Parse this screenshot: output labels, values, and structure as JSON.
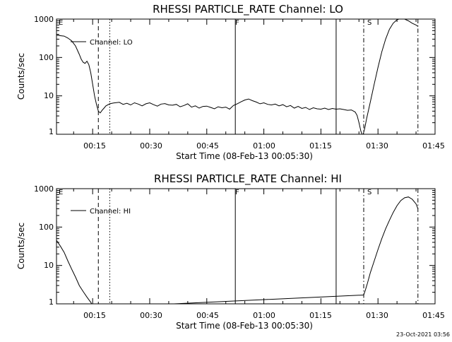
{
  "footer": {
    "timestamp": "23-Oct-2021 03:56"
  },
  "chart_data": [
    {
      "type": "line",
      "title": "RHESSI PARTICLE_RATE Channel: LO",
      "xlabel": "Start Time (08-Feb-13 00:05:30)",
      "ylabel": "Counts/sec",
      "xscale": "time",
      "yscale": "log",
      "xlim": [
        "00:05:30",
        "01:45:00"
      ],
      "ylim": [
        1,
        1000
      ],
      "xticks": [
        "00:15",
        "00:30",
        "00:45",
        "01:00",
        "01:15",
        "01:30",
        "01:45"
      ],
      "yticks": [
        "1",
        "10",
        "100",
        "1000"
      ],
      "legend": {
        "position": "top-left",
        "entries": [
          "Channel: LO"
        ]
      },
      "markers": [
        {
          "label": "E",
          "time": "00:05:30",
          "style": "solid"
        },
        {
          "label": "",
          "time": "00:16:30",
          "style": "dashed"
        },
        {
          "label": "",
          "time": "00:19:30",
          "style": "dotted"
        },
        {
          "label": "F",
          "time": "00:52:30",
          "style": "solid"
        },
        {
          "label": "",
          "time": "01:19:00",
          "style": "solid"
        },
        {
          "label": "S",
          "time": "01:26:15",
          "style": "dashdot"
        },
        {
          "label": "",
          "time": "01:40:30",
          "style": "dashdot"
        }
      ],
      "series": [
        {
          "name": "Channel: LO",
          "x": [
            "00:05:30",
            "00:06:30",
            "00:07:30",
            "00:08:30",
            "00:09:30",
            "00:10:30",
            "00:11:30",
            "00:12:00",
            "00:12:30",
            "00:13:00",
            "00:13:30",
            "00:14:00",
            "00:14:30",
            "00:15:00",
            "00:15:30",
            "00:16:00",
            "00:16:30",
            "00:17:00",
            "00:17:30",
            "00:18:00",
            "00:18:30",
            "00:19:30",
            "00:20:30",
            "00:22:00",
            "00:23:00",
            "00:24:00",
            "00:25:00",
            "00:26:00",
            "00:27:00",
            "00:28:00",
            "00:29:00",
            "00:30:00",
            "00:31:00",
            "00:32:00",
            "00:33:00",
            "00:34:00",
            "00:35:00",
            "00:36:00",
            "00:37:00",
            "00:38:00",
            "00:39:00",
            "00:40:00",
            "00:41:00",
            "00:42:00",
            "00:43:00",
            "00:44:00",
            "00:45:00",
            "00:46:00",
            "00:47:00",
            "00:48:00",
            "00:49:00",
            "00:50:00",
            "00:51:00",
            "00:52:00",
            "00:53:00",
            "00:54:00",
            "00:55:00",
            "00:56:00",
            "00:57:00",
            "00:58:00",
            "00:59:00",
            "01:00:00",
            "01:01:00",
            "01:02:00",
            "01:03:00",
            "01:04:00",
            "01:05:00",
            "01:06:00",
            "01:07:00",
            "01:08:00",
            "01:09:00",
            "01:10:00",
            "01:11:00",
            "01:12:00",
            "01:13:00",
            "01:14:00",
            "01:15:00",
            "01:16:00",
            "01:17:00",
            "01:18:00",
            "01:19:00",
            "01:20:00",
            "01:21:00",
            "01:22:00",
            "01:23:00",
            "01:24:00",
            "01:24:30",
            "01:25:00",
            "01:25:30",
            "01:26:00",
            "01:26:30",
            "01:27:00",
            "01:28:00",
            "01:29:00",
            "01:30:00",
            "01:31:00",
            "01:32:00",
            "01:33:00",
            "01:34:00",
            "01:35:00",
            "01:36:00",
            "01:37:00",
            "01:38:00",
            "01:39:00",
            "01:40:00",
            "01:40:30"
          ],
          "y": [
            380,
            370,
            360,
            320,
            270,
            200,
            120,
            90,
            75,
            70,
            80,
            65,
            40,
            20,
            10,
            6,
            4,
            3.6,
            4.2,
            4.8,
            5.5,
            6.2,
            6.5,
            6.8,
            6.0,
            6.4,
            5.8,
            6.6,
            6.1,
            5.5,
            6.2,
            6.6,
            5.9,
            5.4,
            6.1,
            6.3,
            5.8,
            5.7,
            6.0,
            5.2,
            5.6,
            6.2,
            5.1,
            5.5,
            4.8,
            5.3,
            5.4,
            5.0,
            4.6,
            5.2,
            4.9,
            5.1,
            4.5,
            5.6,
            6.2,
            7.0,
            7.8,
            8.3,
            7.5,
            6.9,
            6.2,
            6.6,
            6.0,
            5.8,
            6.1,
            5.5,
            5.9,
            5.2,
            5.6,
            4.8,
            5.3,
            4.7,
            5.0,
            4.4,
            4.9,
            4.6,
            4.5,
            4.8,
            4.4,
            4.7,
            4.5,
            4.6,
            4.4,
            4.2,
            4.3,
            3.8,
            3.1,
            2.0,
            1.2,
            0.9,
            1.4,
            2.5,
            7,
            20,
            55,
            140,
            300,
            540,
            780,
            960,
            1040,
            1000,
            900,
            780,
            700,
            640
          ]
        }
      ]
    },
    {
      "type": "line",
      "title": "RHESSI PARTICLE_RATE Channel: HI",
      "xlabel": "Start Time (08-Feb-13 00:05:30)",
      "ylabel": "Counts/sec",
      "xscale": "time",
      "yscale": "log",
      "xlim": [
        "00:05:30",
        "01:45:00"
      ],
      "ylim": [
        1,
        1000
      ],
      "xticks": [
        "00:15",
        "00:30",
        "00:45",
        "01:00",
        "01:15",
        "01:30",
        "01:45"
      ],
      "yticks": [
        "1",
        "10",
        "100",
        "1000"
      ],
      "legend": {
        "position": "top-left",
        "entries": [
          "Channel: HI"
        ]
      },
      "markers": [
        {
          "label": "E",
          "time": "00:05:30",
          "style": "solid"
        },
        {
          "label": "",
          "time": "00:16:30",
          "style": "dashed"
        },
        {
          "label": "",
          "time": "00:19:30",
          "style": "dotted"
        },
        {
          "label": "F",
          "time": "00:52:30",
          "style": "solid"
        },
        {
          "label": "",
          "time": "01:19:00",
          "style": "solid"
        },
        {
          "label": "S",
          "time": "01:26:15",
          "style": "dashdot"
        },
        {
          "label": "",
          "time": "01:40:30",
          "style": "dashdot"
        }
      ],
      "series": [
        {
          "name": "Channel: HI",
          "x": [
            "00:05:30",
            "00:06:30",
            "00:07:30",
            "00:08:30",
            "00:09:30",
            "00:10:30",
            "00:11:30",
            "00:12:30",
            "00:13:30",
            "00:14:30",
            "00:15:00",
            "00:26:15",
            "01:26:15",
            "01:26:45",
            "01:27:15",
            "01:28:00",
            "01:29:00",
            "01:30:00",
            "01:31:00",
            "01:32:00",
            "01:33:00",
            "01:34:00",
            "01:35:00",
            "01:36:00",
            "01:37:00",
            "01:38:00",
            "01:39:00",
            "01:40:00",
            "01:40:30"
          ],
          "y": [
            45,
            32,
            22,
            13,
            8,
            5,
            3,
            2.1,
            1.5,
            1.1,
            0.9,
            0.9,
            1.7,
            2.4,
            3.5,
            6.5,
            13,
            26,
            50,
            90,
            150,
            240,
            360,
            490,
            580,
            610,
            530,
            400,
            300
          ]
        }
      ]
    }
  ]
}
